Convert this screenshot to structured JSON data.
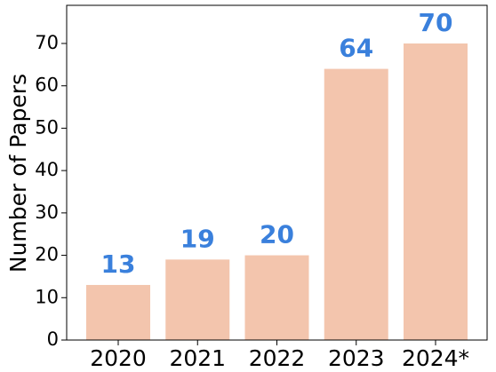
{
  "chart_data": {
    "type": "bar",
    "y_label": "Number of Papers",
    "categories": [
      "2020",
      "2021",
      "2022",
      "2023",
      "2024*"
    ],
    "values": [
      13,
      19,
      20,
      64,
      70
    ],
    "color": "#f3c5ad",
    "label_color": "#3a80dc",
    "ylim": [
      0,
      79
    ],
    "yticks": [
      0,
      10,
      20,
      30,
      40,
      50,
      60,
      70
    ]
  }
}
